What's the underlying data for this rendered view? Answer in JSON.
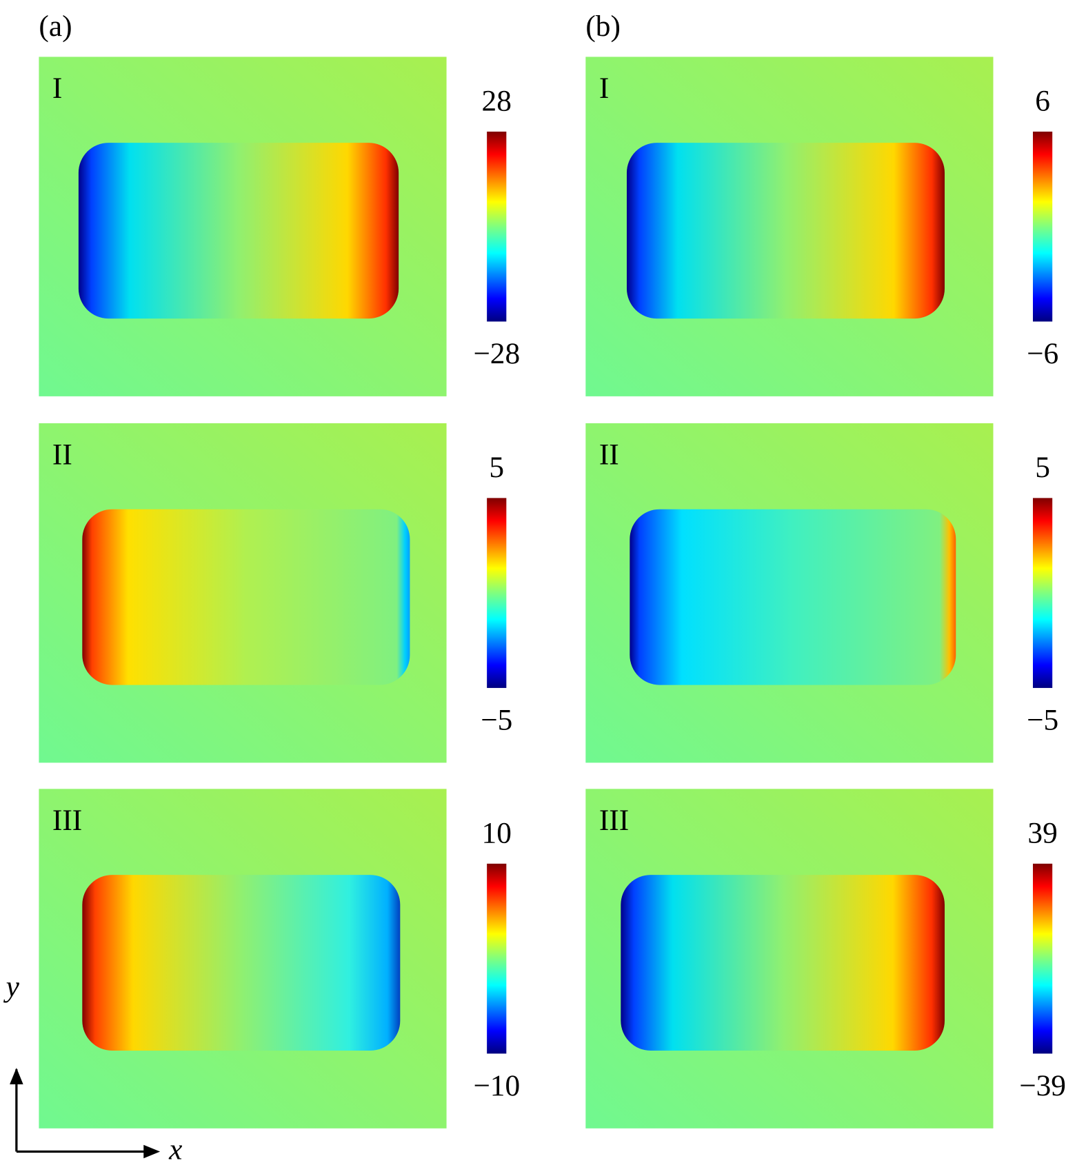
{
  "columns": [
    {
      "label": "(a)",
      "panels": [
        {
          "label": "I",
          "cbar_max": "28",
          "cbar_min": "−28"
        },
        {
          "label": "II",
          "cbar_max": "5",
          "cbar_min": "−5"
        },
        {
          "label": "III",
          "cbar_max": "10",
          "cbar_min": "−10"
        }
      ]
    },
    {
      "label": "(b)",
      "panels": [
        {
          "label": "I",
          "cbar_max": "6",
          "cbar_min": "−6"
        },
        {
          "label": "II",
          "cbar_max": "5",
          "cbar_min": "−5"
        },
        {
          "label": "III",
          "cbar_max": "39",
          "cbar_min": "−39"
        }
      ]
    }
  ],
  "axes": {
    "x": "x",
    "y": "y"
  }
}
